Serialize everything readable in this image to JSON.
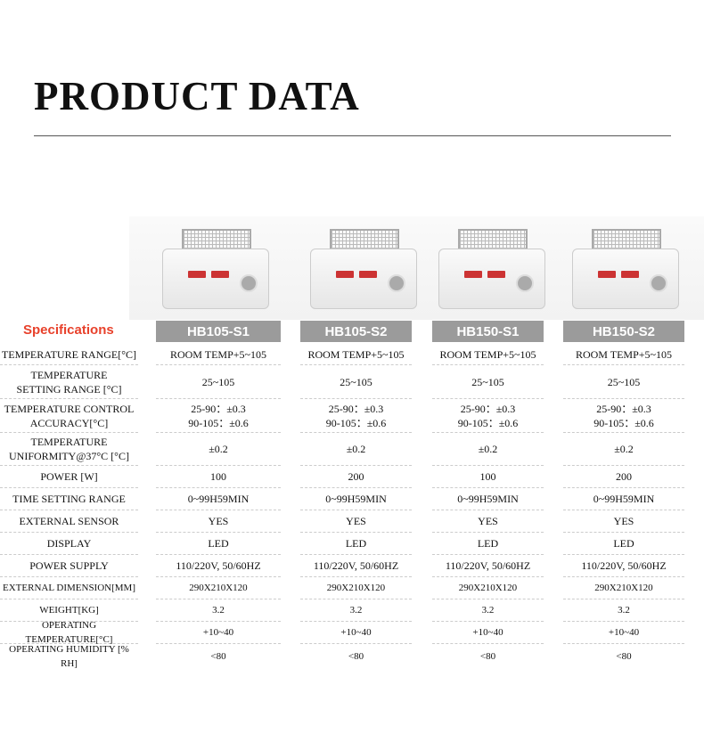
{
  "title": "PRODUCT DATA",
  "specifications_label": "Specifications",
  "models": [
    "HB105-S1",
    "HB105-S2",
    "HB150-S1",
    "HB150-S2"
  ],
  "rows": [
    {
      "label": "TEMPERATURE RANGE[°C]",
      "values": [
        "ROOM TEMP+5~105",
        "ROOM TEMP+5~105",
        "ROOM TEMP+5~105",
        "ROOM TEMP+5~105"
      ]
    },
    {
      "label": "TEMPERATURE\nSETTING RANGE [°C]",
      "values": [
        "25~105",
        "25~105",
        "25~105",
        "25~105"
      ]
    },
    {
      "label": "TEMPERATURE CONTROL\nACCURACY[°C]",
      "values": [
        "25-90：±0.3\n90-105：±0.6",
        "25-90：±0.3\n90-105：±0.6",
        "25-90：±0.3\n90-105：±0.6",
        "25-90：±0.3\n90-105：±0.6"
      ]
    },
    {
      "label": "TEMPERATURE\nUNIFORMITY@37°C [°C]",
      "values": [
        "±0.2",
        "±0.2",
        "±0.2",
        "±0.2"
      ]
    },
    {
      "label": "POWER [W]",
      "values": [
        "100",
        "200",
        "100",
        "200"
      ]
    },
    {
      "label": "TIME SETTING RANGE",
      "values": [
        "0~99H59MIN",
        "0~99H59MIN",
        "0~99H59MIN",
        "0~99H59MIN"
      ]
    },
    {
      "label": "EXTERNAL SENSOR",
      "values": [
        "YES",
        "YES",
        "YES",
        "YES"
      ]
    },
    {
      "label": "DISPLAY",
      "values": [
        "LED",
        "LED",
        "LED",
        "LED"
      ]
    },
    {
      "label": "POWER SUPPLY",
      "values": [
        "110/220V, 50/60HZ",
        "110/220V, 50/60HZ",
        "110/220V, 50/60HZ",
        "110/220V, 50/60HZ"
      ]
    },
    {
      "label": "EXTERNAL DIMENSION[MM]",
      "values": [
        "290X210X120",
        "290X210X120",
        "290X210X120",
        "290X210X120"
      ]
    },
    {
      "label": "WEIGHT[KG]",
      "values": [
        "3.2",
        "3.2",
        "3.2",
        "3.2"
      ]
    },
    {
      "label": "OPERATING TEMPERATURE[°C]",
      "values": [
        "+10~40",
        "+10~40",
        "+10~40",
        "+10~40"
      ]
    },
    {
      "label": "OPERATING HUMIDITY [% RH]",
      "values": [
        "<80",
        "<80",
        "<80",
        "<80"
      ]
    }
  ]
}
